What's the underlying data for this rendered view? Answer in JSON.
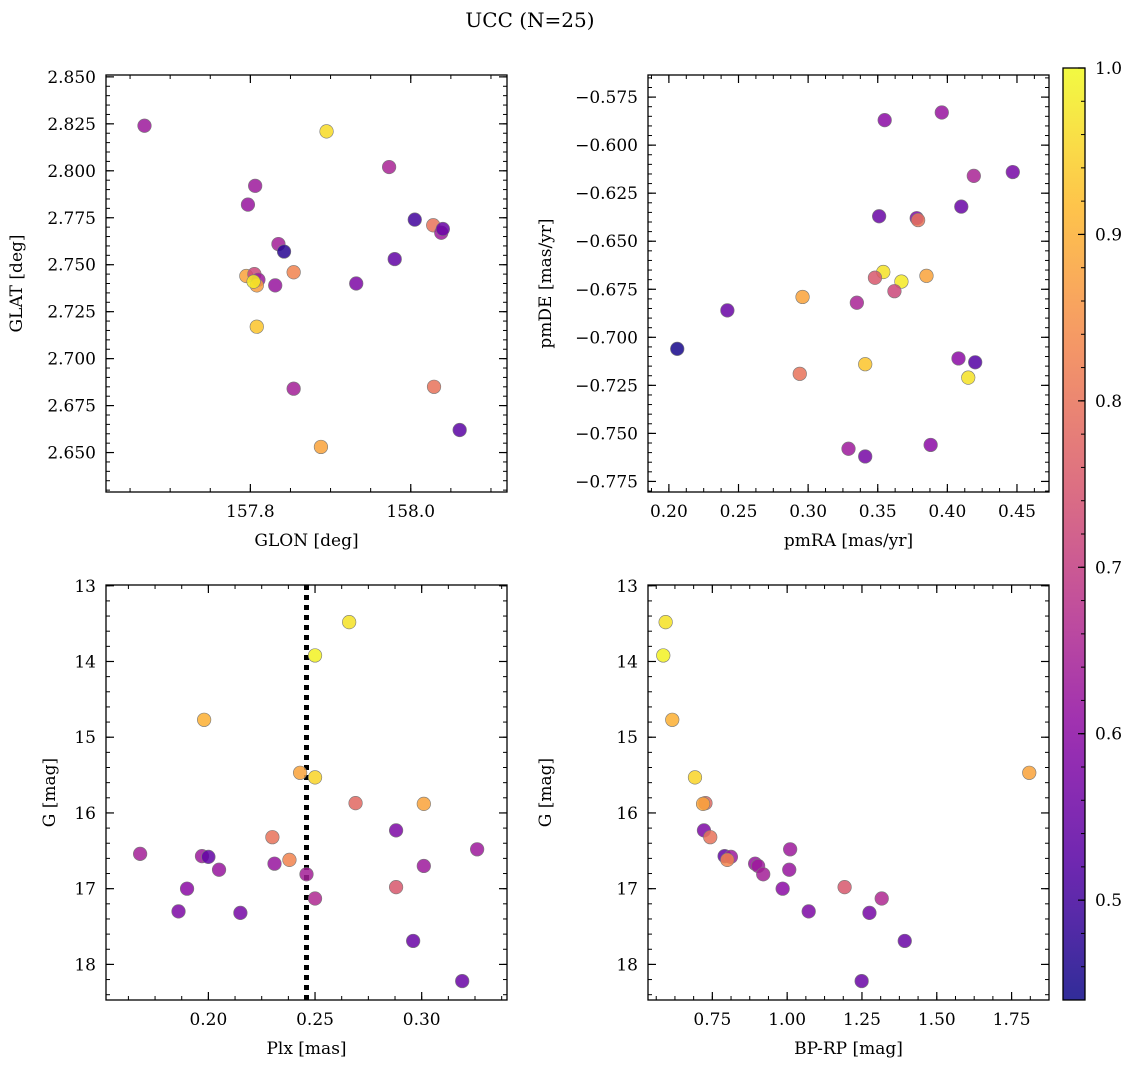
{
  "figure": {
    "title": "UCC (N=25)"
  },
  "colorbar": {
    "colormap": "plasma",
    "range": [
      0.44,
      1.0
    ],
    "ticks": [
      0.5,
      0.6,
      0.7,
      0.8,
      0.9,
      1.0
    ],
    "tick_labels": [
      "0.5",
      "0.6",
      "0.7",
      "0.8",
      "0.9",
      "1.0"
    ]
  },
  "chart_data": [
    {
      "type": "scatter",
      "xlabel": "GLON [deg]",
      "ylabel": "GLAT [deg]",
      "xlim": [
        157.62,
        158.12
      ],
      "ylim": [
        2.629,
        2.851
      ],
      "y_inverted": false,
      "xticks": [
        157.8,
        158.0
      ],
      "xtick_labels": [
        "157.8",
        "158.0"
      ],
      "yticks": [
        2.65,
        2.675,
        2.7,
        2.725,
        2.75,
        2.775,
        2.8,
        2.825,
        2.85
      ],
      "ytick_labels": [
        "2.650",
        "2.675",
        "2.700",
        "2.725",
        "2.750",
        "2.775",
        "2.800",
        "2.825",
        "2.850"
      ],
      "points": [
        {
          "x": 157.668,
          "y": 2.824,
          "c": 0.63
        },
        {
          "x": 157.895,
          "y": 2.821,
          "c": 0.96
        },
        {
          "x": 157.973,
          "y": 2.802,
          "c": 0.65
        },
        {
          "x": 157.806,
          "y": 2.792,
          "c": 0.63
        },
        {
          "x": 157.797,
          "y": 2.782,
          "c": 0.62
        },
        {
          "x": 158.005,
          "y": 2.774,
          "c": 0.5
        },
        {
          "x": 158.028,
          "y": 2.771,
          "c": 0.8
        },
        {
          "x": 158.038,
          "y": 2.767,
          "c": 0.63
        },
        {
          "x": 158.04,
          "y": 2.769,
          "c": 0.55
        },
        {
          "x": 157.835,
          "y": 2.761,
          "c": 0.64
        },
        {
          "x": 157.842,
          "y": 2.757,
          "c": 0.47
        },
        {
          "x": 157.98,
          "y": 2.753,
          "c": 0.54
        },
        {
          "x": 157.854,
          "y": 2.746,
          "c": 0.83
        },
        {
          "x": 157.795,
          "y": 2.744,
          "c": 0.88
        },
        {
          "x": 157.805,
          "y": 2.745,
          "c": 0.72
        },
        {
          "x": 157.81,
          "y": 2.742,
          "c": 0.63
        },
        {
          "x": 157.808,
          "y": 2.739,
          "c": 0.87
        },
        {
          "x": 157.804,
          "y": 2.741,
          "c": 0.98
        },
        {
          "x": 157.831,
          "y": 2.739,
          "c": 0.62
        },
        {
          "x": 157.932,
          "y": 2.74,
          "c": 0.58
        },
        {
          "x": 157.808,
          "y": 2.717,
          "c": 0.93
        },
        {
          "x": 157.854,
          "y": 2.684,
          "c": 0.64
        },
        {
          "x": 158.029,
          "y": 2.685,
          "c": 0.8
        },
        {
          "x": 158.061,
          "y": 2.662,
          "c": 0.53
        },
        {
          "x": 157.888,
          "y": 2.653,
          "c": 0.88
        }
      ]
    },
    {
      "type": "scatter",
      "xlabel": "pmRA [mas/yr]",
      "ylabel": "pmDE [mas/yr]",
      "xlim": [
        0.185,
        0.473
      ],
      "ylim": [
        -0.7805,
        -0.5635
      ],
      "y_inverted": false,
      "xticks": [
        0.2,
        0.25,
        0.3,
        0.35,
        0.4,
        0.45
      ],
      "xtick_labels": [
        "0.20",
        "0.25",
        "0.30",
        "0.35",
        "0.40",
        "0.45"
      ],
      "yticks": [
        -0.775,
        -0.75,
        -0.725,
        -0.7,
        -0.675,
        -0.65,
        -0.625,
        -0.6,
        -0.575
      ],
      "ytick_labels": [
        "−0.775",
        "−0.750",
        "−0.725",
        "−0.700",
        "−0.675",
        "−0.650",
        "−0.625",
        "−0.600",
        "−0.575"
      ],
      "points": [
        {
          "x": 0.396,
          "y": -0.583,
          "c": 0.62
        },
        {
          "x": 0.355,
          "y": -0.587,
          "c": 0.6
        },
        {
          "x": 0.419,
          "y": -0.616,
          "c": 0.65
        },
        {
          "x": 0.447,
          "y": -0.614,
          "c": 0.57
        },
        {
          "x": 0.41,
          "y": -0.632,
          "c": 0.55
        },
        {
          "x": 0.351,
          "y": -0.637,
          "c": 0.55
        },
        {
          "x": 0.378,
          "y": -0.638,
          "c": 0.58
        },
        {
          "x": 0.379,
          "y": -0.639,
          "c": 0.8
        },
        {
          "x": 0.354,
          "y": -0.666,
          "c": 0.97
        },
        {
          "x": 0.348,
          "y": -0.669,
          "c": 0.75
        },
        {
          "x": 0.367,
          "y": -0.671,
          "c": 0.98
        },
        {
          "x": 0.385,
          "y": -0.668,
          "c": 0.88
        },
        {
          "x": 0.362,
          "y": -0.676,
          "c": 0.72
        },
        {
          "x": 0.296,
          "y": -0.679,
          "c": 0.88
        },
        {
          "x": 0.335,
          "y": -0.682,
          "c": 0.65
        },
        {
          "x": 0.242,
          "y": -0.686,
          "c": 0.55
        },
        {
          "x": 0.206,
          "y": -0.706,
          "c": 0.45
        },
        {
          "x": 0.408,
          "y": -0.711,
          "c": 0.6
        },
        {
          "x": 0.42,
          "y": -0.713,
          "c": 0.52
        },
        {
          "x": 0.341,
          "y": -0.714,
          "c": 0.93
        },
        {
          "x": 0.294,
          "y": -0.719,
          "c": 0.8
        },
        {
          "x": 0.415,
          "y": -0.721,
          "c": 0.97
        },
        {
          "x": 0.388,
          "y": -0.756,
          "c": 0.6
        },
        {
          "x": 0.329,
          "y": -0.758,
          "c": 0.63
        },
        {
          "x": 0.341,
          "y": -0.762,
          "c": 0.57
        }
      ]
    },
    {
      "type": "scatter",
      "xlabel": "Plx [mas]",
      "ylabel": "G [mag]",
      "xlim": [
        0.152,
        0.34
      ],
      "ylim": [
        12.99,
        18.47
      ],
      "y_inverted": true,
      "xticks": [
        0.2,
        0.25,
        0.3
      ],
      "xtick_labels": [
        "0.20",
        "0.25",
        "0.30"
      ],
      "yticks": [
        13,
        14,
        15,
        16,
        17,
        18
      ],
      "ytick_labels": [
        "13",
        "14",
        "15",
        "16",
        "17",
        "18"
      ],
      "vline": {
        "x": 0.246,
        "style": "dotted"
      },
      "points": [
        {
          "x": 0.266,
          "y": 13.48,
          "c": 0.97
        },
        {
          "x": 0.25,
          "y": 13.92,
          "c": 0.99
        },
        {
          "x": 0.198,
          "y": 14.77,
          "c": 0.9
        },
        {
          "x": 0.243,
          "y": 15.47,
          "c": 0.88
        },
        {
          "x": 0.25,
          "y": 15.53,
          "c": 0.95
        },
        {
          "x": 0.269,
          "y": 15.87,
          "c": 0.78
        },
        {
          "x": 0.301,
          "y": 15.88,
          "c": 0.88
        },
        {
          "x": 0.288,
          "y": 16.23,
          "c": 0.58
        },
        {
          "x": 0.23,
          "y": 16.32,
          "c": 0.8
        },
        {
          "x": 0.326,
          "y": 16.48,
          "c": 0.63
        },
        {
          "x": 0.168,
          "y": 16.54,
          "c": 0.64
        },
        {
          "x": 0.197,
          "y": 16.57,
          "c": 0.63
        },
        {
          "x": 0.2,
          "y": 16.58,
          "c": 0.54
        },
        {
          "x": 0.238,
          "y": 16.62,
          "c": 0.83
        },
        {
          "x": 0.231,
          "y": 16.67,
          "c": 0.62
        },
        {
          "x": 0.301,
          "y": 16.7,
          "c": 0.63
        },
        {
          "x": 0.205,
          "y": 16.75,
          "c": 0.62
        },
        {
          "x": 0.246,
          "y": 16.81,
          "c": 0.64
        },
        {
          "x": 0.288,
          "y": 16.98,
          "c": 0.75
        },
        {
          "x": 0.19,
          "y": 17.0,
          "c": 0.6
        },
        {
          "x": 0.25,
          "y": 17.13,
          "c": 0.66
        },
        {
          "x": 0.186,
          "y": 17.3,
          "c": 0.58
        },
        {
          "x": 0.215,
          "y": 17.32,
          "c": 0.57
        },
        {
          "x": 0.296,
          "y": 17.69,
          "c": 0.55
        },
        {
          "x": 0.319,
          "y": 18.22,
          "c": 0.55
        }
      ]
    },
    {
      "type": "scatter",
      "xlabel": "BP-RP [mag]",
      "ylabel": "G [mag]",
      "xlim": [
        0.535,
        1.875
      ],
      "ylim": [
        12.99,
        18.47
      ],
      "y_inverted": true,
      "xticks": [
        0.75,
        1.0,
        1.25,
        1.5,
        1.75
      ],
      "xtick_labels": [
        "0.75",
        "1.00",
        "1.25",
        "1.50",
        "1.75"
      ],
      "yticks": [
        13,
        14,
        15,
        16,
        17,
        18
      ],
      "ytick_labels": [
        "13",
        "14",
        "15",
        "16",
        "17",
        "18"
      ],
      "points": [
        {
          "x": 0.594,
          "y": 13.48,
          "c": 0.97
        },
        {
          "x": 0.586,
          "y": 13.92,
          "c": 0.99
        },
        {
          "x": 0.616,
          "y": 14.77,
          "c": 0.9
        },
        {
          "x": 0.692,
          "y": 15.53,
          "c": 0.95
        },
        {
          "x": 1.809,
          "y": 15.47,
          "c": 0.88
        },
        {
          "x": 0.727,
          "y": 15.87,
          "c": 0.78
        },
        {
          "x": 0.719,
          "y": 15.88,
          "c": 0.88
        },
        {
          "x": 0.722,
          "y": 16.23,
          "c": 0.58
        },
        {
          "x": 0.743,
          "y": 16.32,
          "c": 0.8
        },
        {
          "x": 1.01,
          "y": 16.48,
          "c": 0.63
        },
        {
          "x": 0.791,
          "y": 16.57,
          "c": 0.54
        },
        {
          "x": 0.812,
          "y": 16.58,
          "c": 0.63
        },
        {
          "x": 0.8,
          "y": 16.62,
          "c": 0.83
        },
        {
          "x": 0.893,
          "y": 16.67,
          "c": 0.62
        },
        {
          "x": 0.903,
          "y": 16.7,
          "c": 0.63
        },
        {
          "x": 1.007,
          "y": 16.75,
          "c": 0.62
        },
        {
          "x": 0.92,
          "y": 16.81,
          "c": 0.64
        },
        {
          "x": 1.192,
          "y": 16.98,
          "c": 0.75
        },
        {
          "x": 0.985,
          "y": 17.0,
          "c": 0.6
        },
        {
          "x": 1.316,
          "y": 17.13,
          "c": 0.66
        },
        {
          "x": 1.072,
          "y": 17.3,
          "c": 0.58
        },
        {
          "x": 1.275,
          "y": 17.32,
          "c": 0.57
        },
        {
          "x": 1.393,
          "y": 17.69,
          "c": 0.55
        },
        {
          "x": 1.249,
          "y": 18.22,
          "c": 0.55
        }
      ]
    }
  ]
}
